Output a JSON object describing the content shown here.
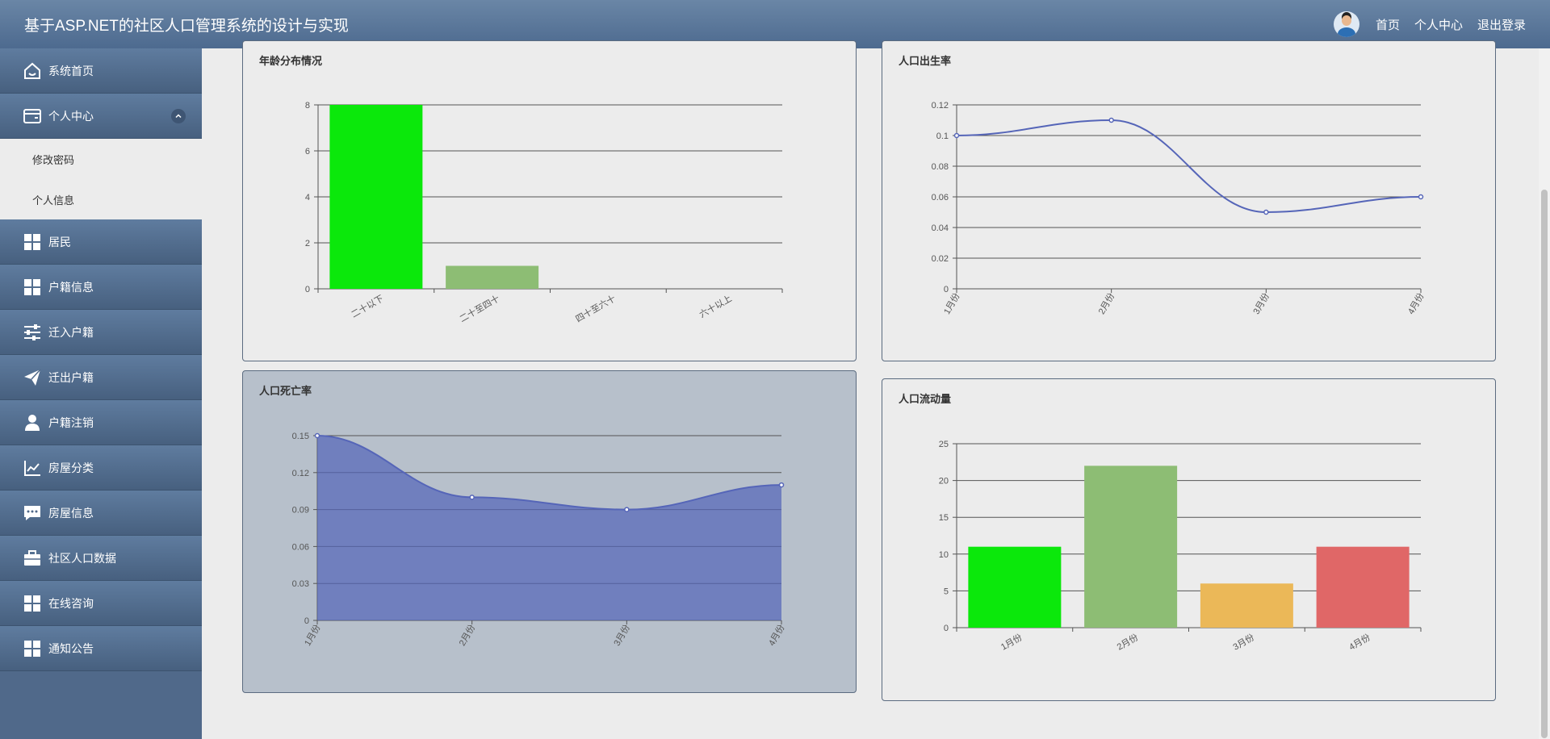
{
  "app": {
    "title": "基于ASP.NET的社区人口管理系统的设计与实现"
  },
  "header": {
    "links": [
      "首页",
      "个人中心",
      "退出登录"
    ]
  },
  "sidebar": {
    "items": [
      {
        "label": "系统首页",
        "icon": "home-icon"
      },
      {
        "label": "个人中心",
        "icon": "wallet-icon",
        "expanded": true,
        "children": [
          "修改密码",
          "个人信息"
        ]
      },
      {
        "label": "居民",
        "icon": "grid-icon"
      },
      {
        "label": "户籍信息",
        "icon": "grid-icon"
      },
      {
        "label": "迁入户籍",
        "icon": "sliders-icon"
      },
      {
        "label": "迁出户籍",
        "icon": "paper-plane-icon"
      },
      {
        "label": "户籍注销",
        "icon": "user-icon"
      },
      {
        "label": "房屋分类",
        "icon": "line-chart-icon"
      },
      {
        "label": "房屋信息",
        "icon": "chat-icon"
      },
      {
        "label": "社区人口数据",
        "icon": "briefcase-icon"
      },
      {
        "label": "在线咨询",
        "icon": "grid-icon"
      },
      {
        "label": "通知公告",
        "icon": "grid-icon"
      }
    ]
  },
  "chart_data": [
    {
      "type": "bar",
      "title": "年龄分布情况",
      "categories": [
        "二十以下",
        "二十至四十",
        "四十至六十",
        "六十以上"
      ],
      "values": [
        8,
        1,
        0,
        0
      ],
      "ylim": [
        0,
        8
      ],
      "yticks": [
        0,
        2,
        4,
        6,
        8
      ],
      "colors": [
        "#0be80b",
        "#8dbd74",
        "#ebb858",
        "#e06767"
      ],
      "grid": true
    },
    {
      "type": "line",
      "title": "人口出生率",
      "categories": [
        "1月份",
        "2月份",
        "3月份",
        "4月份"
      ],
      "values": [
        0.1,
        0.11,
        0.05,
        0.06
      ],
      "ylim": [
        0,
        0.12
      ],
      "yticks": [
        0,
        0.02,
        0.04,
        0.06,
        0.08,
        0.1,
        0.12
      ],
      "color": "#5565b8",
      "grid": true
    },
    {
      "type": "area",
      "title": "人口死亡率",
      "categories": [
        "1月份",
        "2月份",
        "3月份",
        "4月份"
      ],
      "values": [
        0.15,
        0.1,
        0.09,
        0.11
      ],
      "ylim": [
        0,
        0.15
      ],
      "yticks": [
        0,
        0.03,
        0.06,
        0.09,
        0.12,
        0.15
      ],
      "color": "#5565b8",
      "grid": true
    },
    {
      "type": "bar",
      "title": "人口流动量",
      "categories": [
        "1月份",
        "2月份",
        "3月份",
        "4月份"
      ],
      "values": [
        11,
        22,
        6,
        11
      ],
      "ylim": [
        0,
        25
      ],
      "yticks": [
        0,
        5,
        10,
        15,
        20,
        25
      ],
      "colors": [
        "#0be80b",
        "#8dbd74",
        "#ebb858",
        "#e06767"
      ],
      "grid": true
    }
  ]
}
